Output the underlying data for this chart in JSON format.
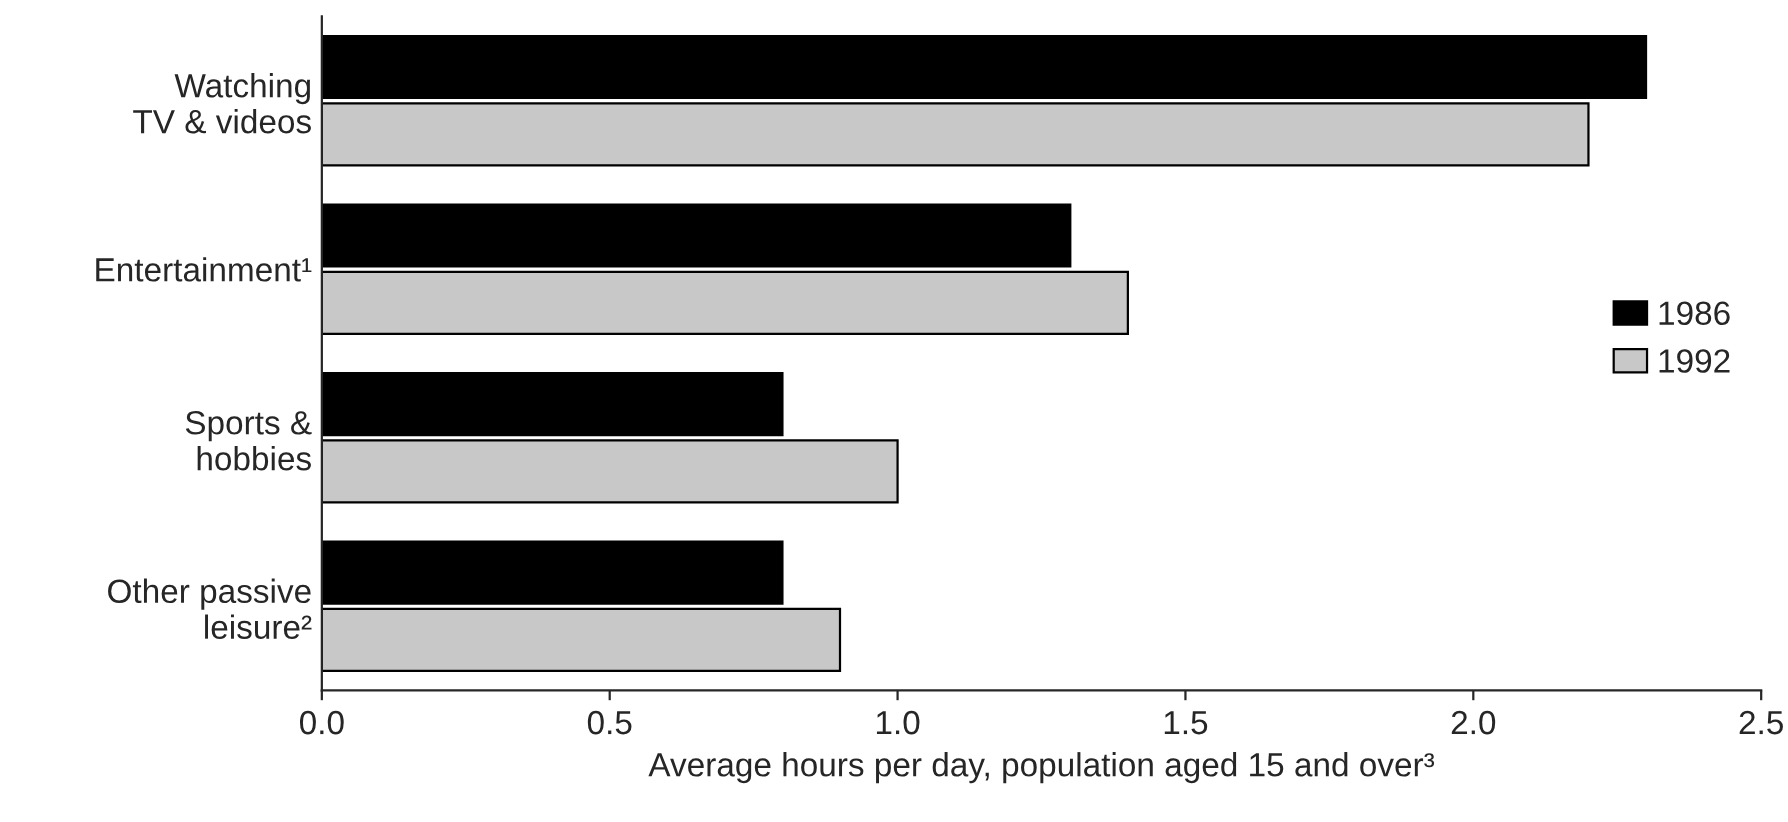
{
  "chart_data": {
    "type": "bar",
    "orientation": "horizontal",
    "xlabel": "Average hours per day, population aged 15 and over³",
    "categories": [
      "Watching\nTV & videos",
      "Entertainment¹",
      "Sports &\nhobbies",
      "Other passive\nleisure²"
    ],
    "series": [
      {
        "name": "1986",
        "color": "#000000",
        "values": [
          2.3,
          1.3,
          0.8,
          0.8
        ]
      },
      {
        "name": "1992",
        "color": "#c8c8c8",
        "values": [
          2.2,
          1.4,
          1.0,
          0.9
        ]
      }
    ],
    "xlim": [
      0,
      2.5
    ],
    "xticks": [
      {
        "value": 0,
        "label": "0.0"
      },
      0.5,
      {
        "value": 1,
        "label": "1.0"
      },
      1.5,
      {
        "value": 2,
        "label": "2.0"
      },
      2.5
    ],
    "legend": "right",
    "grid": false
  }
}
